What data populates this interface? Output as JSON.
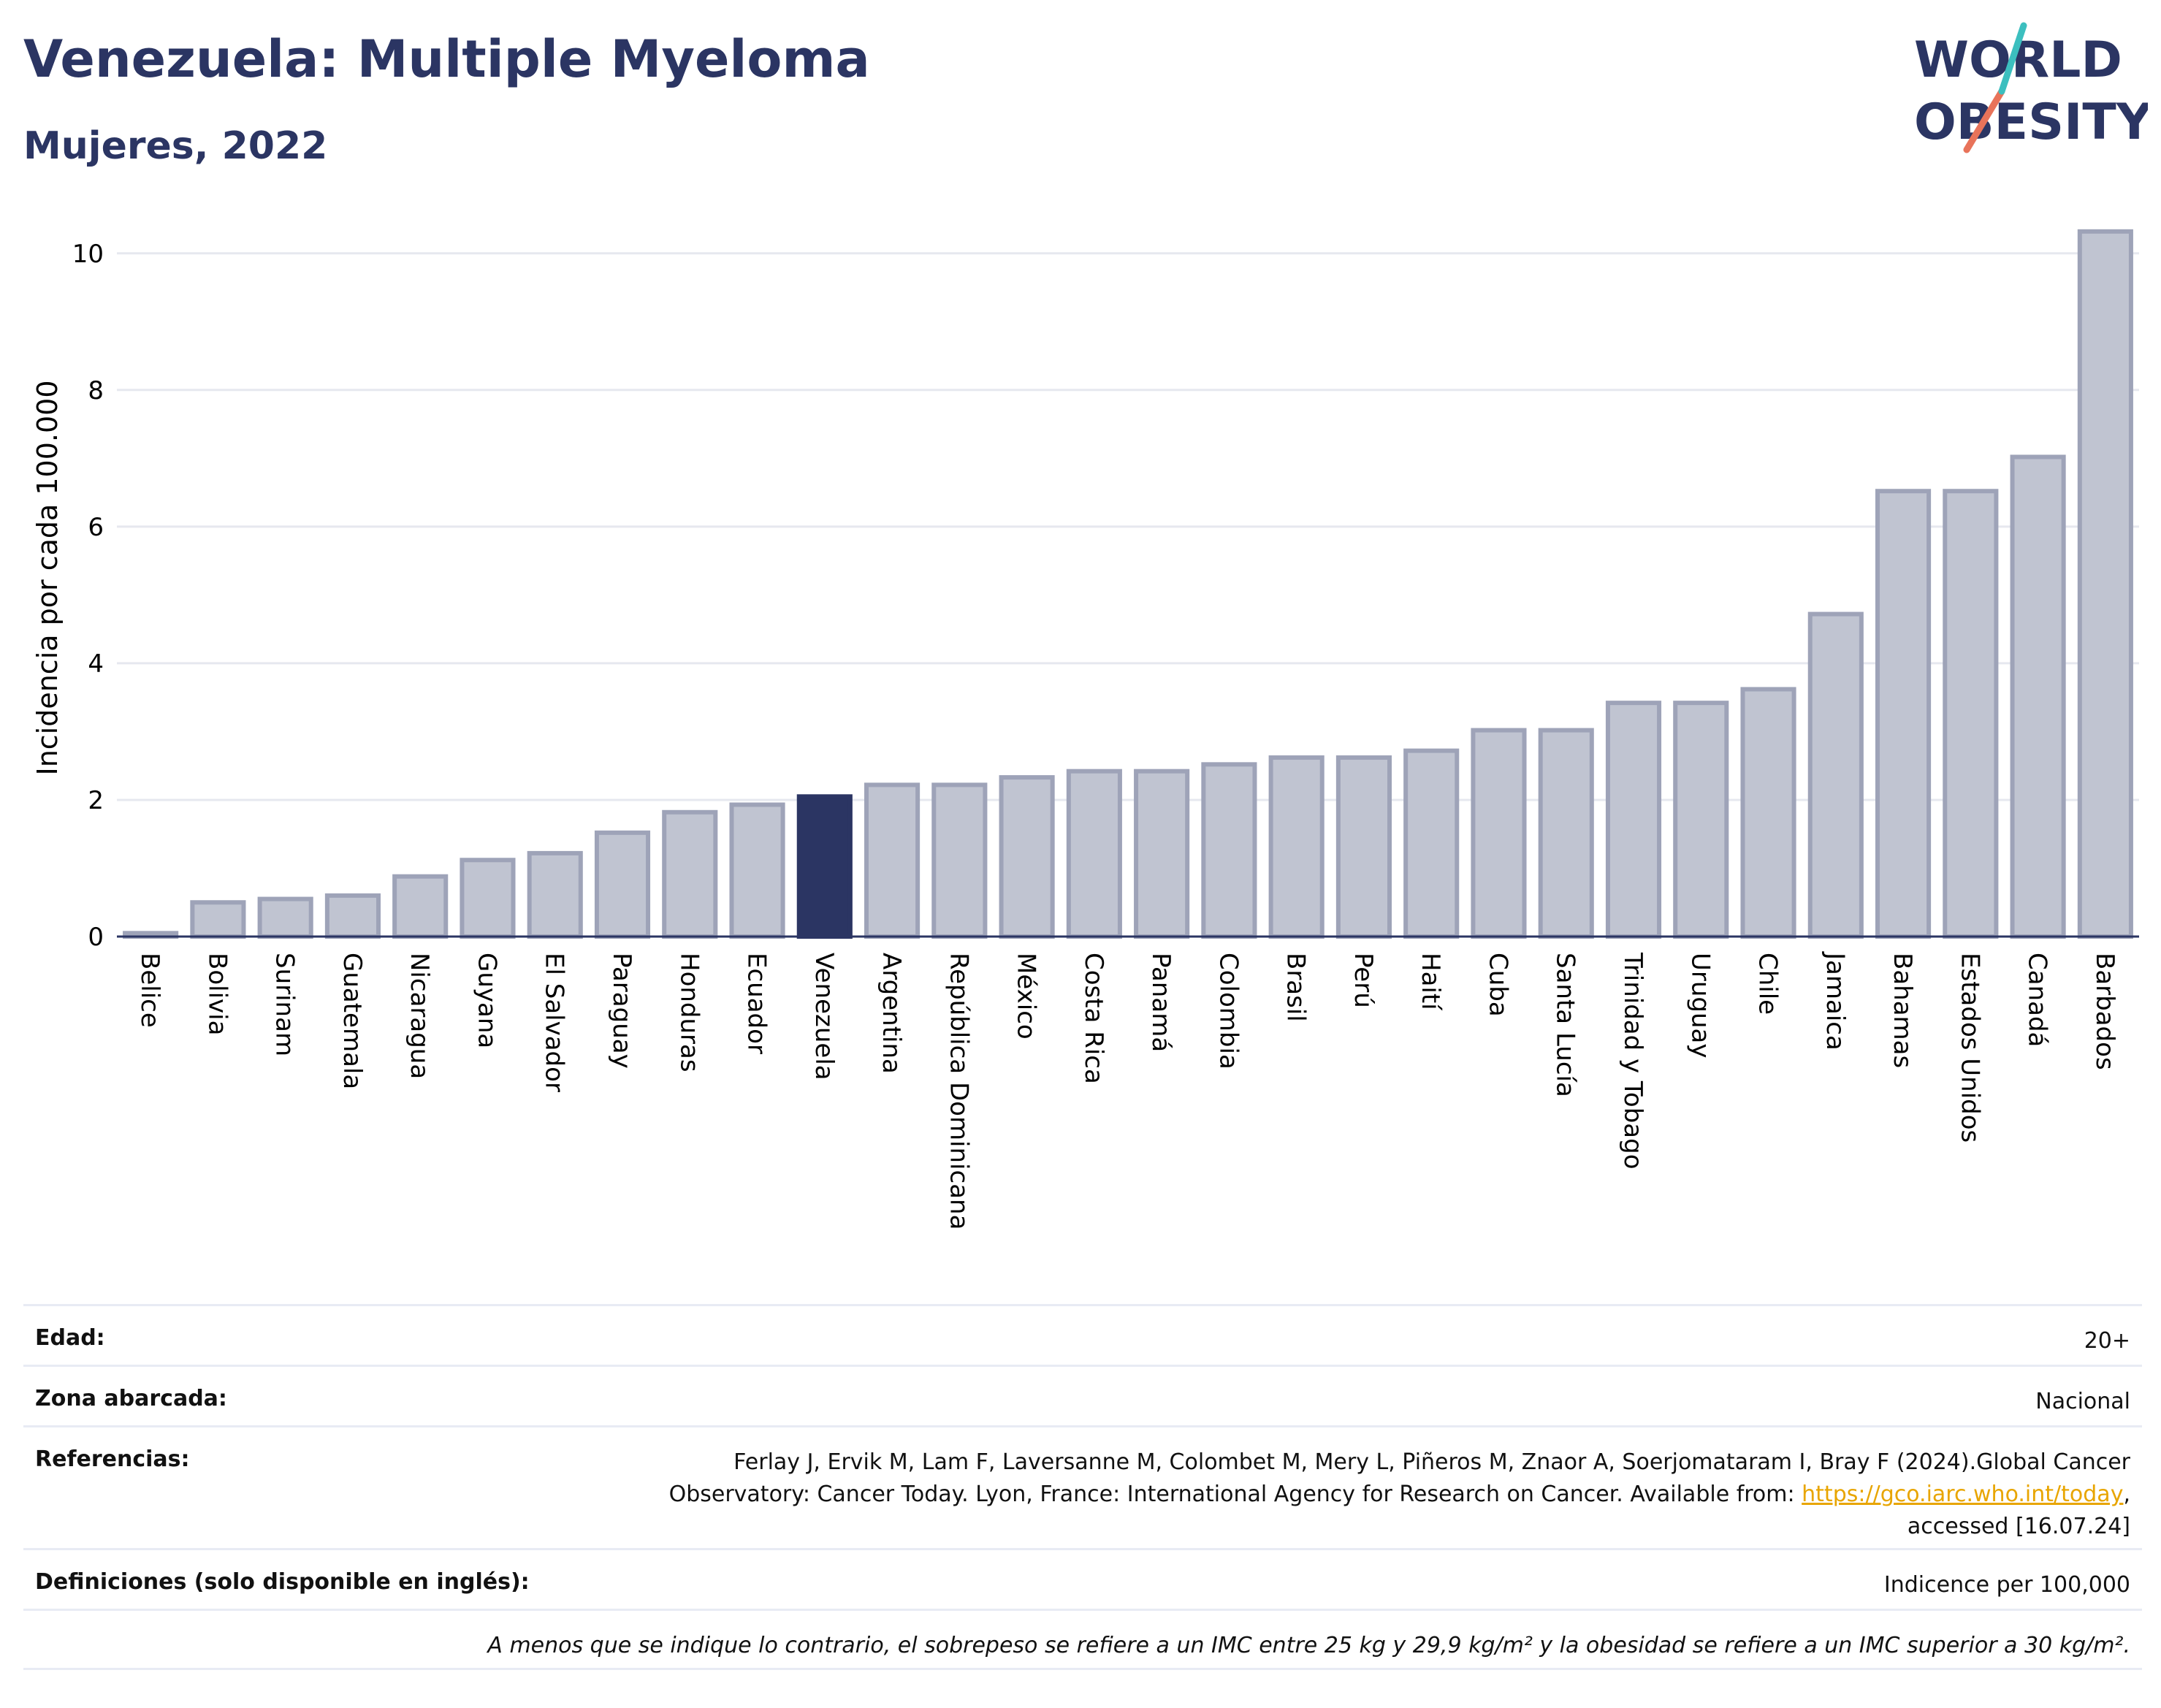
{
  "header": {
    "title": "Venezuela: Multiple Myeloma",
    "subtitle": "Mujeres, 2022"
  },
  "logo": {
    "line1": "WORLD",
    "line2": "OBESITY",
    "accent_colors": [
      "#3cbfbf",
      "#e8735a"
    ]
  },
  "chart_data": {
    "type": "bar",
    "title": "",
    "xlabel": "",
    "ylabel": "Incidencia por cada 100.000",
    "ylim": [
      0,
      10.5
    ],
    "yticks": [
      0,
      2,
      4,
      6,
      8,
      10
    ],
    "grid": true,
    "highlight": "Venezuela",
    "highlight_color": "#2b3563",
    "bar_color": "#c0c4d1",
    "bar_edge_color": "#9ea3b8",
    "categories": [
      "Belice",
      "Bolivia",
      "Surinam",
      "Guatemala",
      "Nicaragua",
      "Guyana",
      "El Salvador",
      "Paraguay",
      "Honduras",
      "Ecuador",
      "Venezuela",
      "Argentina",
      "República Dominicana",
      "México",
      "Costa Rica",
      "Panamá",
      "Colombia",
      "Brasil",
      "Perú",
      "Haití",
      "Cuba",
      "Santa Lucía",
      "Trinidad y Tobago",
      "Uruguay",
      "Chile",
      "Jamaica",
      "Bahamas",
      "Estados Unidos",
      "Canadá",
      "Barbados"
    ],
    "values": [
      0.05,
      0.5,
      0.55,
      0.6,
      0.88,
      1.12,
      1.22,
      1.52,
      1.82,
      1.93,
      2.05,
      2.22,
      2.22,
      2.33,
      2.42,
      2.42,
      2.52,
      2.62,
      2.62,
      2.72,
      3.02,
      3.02,
      3.42,
      3.42,
      3.62,
      4.72,
      6.52,
      6.52,
      7.02,
      10.32
    ]
  },
  "meta": {
    "edad_label": "Edad:",
    "edad_value": "20+",
    "zona_label": "Zona abarcada:",
    "zona_value": "Nacional",
    "ref_label": "Referencias:",
    "ref_line1": "Ferlay J, Ervik M, Lam F, Laversanne M, Colombet M, Mery L, Piñeros M, Znaor A, Soerjomataram I, Bray F (2024).Global Cancer",
    "ref_line2_pre": "Observatory: Cancer Today. Lyon, France: International Agency for Research on Cancer. Available from: ",
    "ref_link": "https://gco.iarc.who.int/today",
    "ref_line2_post": ",",
    "ref_line3": "accessed [16.07.24]",
    "def_label": "Definiciones (solo disponible en inglés):",
    "def_value": "Indicence per 100,000",
    "note": "A menos que se indique lo contrario, el sobrepeso se refiere a un IMC entre 25 kg y 29,9 kg/m² y la obesidad se refiere a un IMC superior a 30 kg/m²."
  }
}
